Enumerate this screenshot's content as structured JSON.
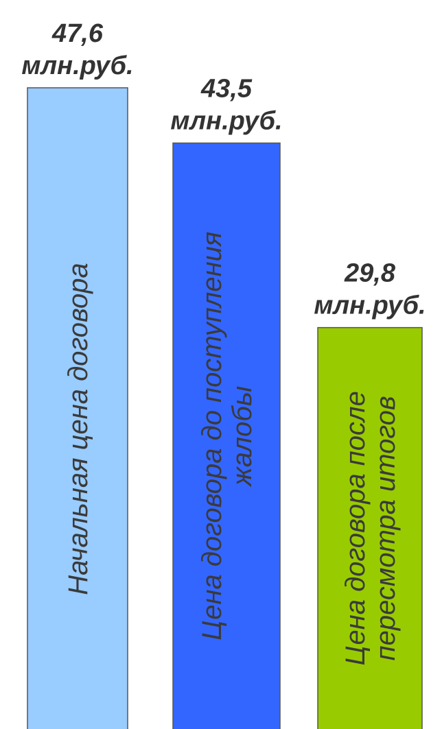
{
  "chart_data": {
    "type": "bar",
    "title": "",
    "xlabel": "",
    "ylabel": "",
    "unit": "млн.руб.",
    "categories": [
      {
        "label_lines": [
          "Начальная цена договора"
        ],
        "value": 47.6,
        "value_text": "47,6",
        "color": "#99CCFF"
      },
      {
        "label_lines": [
          "Цена договора до поступления",
          "жалобы"
        ],
        "value": 43.5,
        "value_text": "43,5",
        "color": "#3366FF"
      },
      {
        "label_lines": [
          "Цена договора после",
          "пересмотра итогов"
        ],
        "value": 29.8,
        "value_text": "29,8",
        "color": "#99CC00"
      }
    ],
    "ylim": [
      0,
      47.6
    ],
    "grid": false,
    "legend": "none"
  }
}
